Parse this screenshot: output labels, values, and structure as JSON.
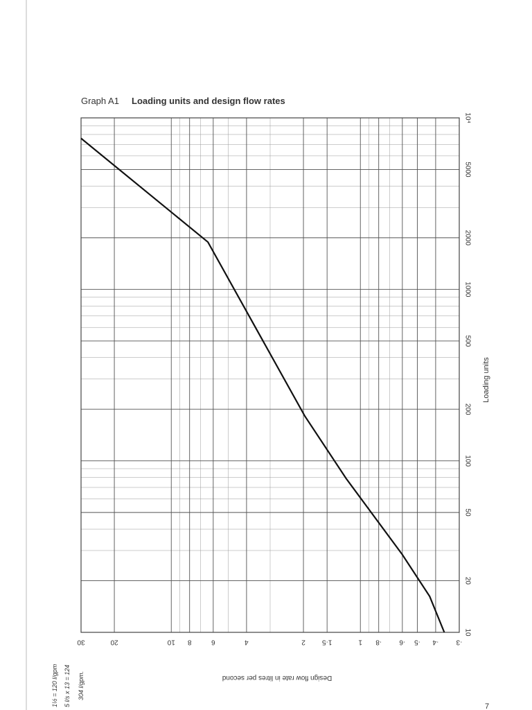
{
  "figure_label": "Graph A1",
  "page_number": "7",
  "handwritten_notes": [
    "1½ = 120 l/gpm",
    "5 l/s x 13 = 124",
    "304 l/gpm."
  ],
  "chart_data": {
    "type": "line",
    "title": "Loading units and design flow rates",
    "x_label": "Design flow rate in litres per second",
    "y_label": "Loading units",
    "x": [
      30,
      6.4,
      1.97,
      1.19,
      0.6,
      0.43,
      0.36
    ],
    "values": [
      7600,
      1885,
      183,
      79,
      28.4,
      16.2,
      10
    ],
    "color": "#111111",
    "xlog": true,
    "ylog": true,
    "grid": true,
    "xlim": [
      30,
      0.3
    ],
    "ylim": [
      10,
      10000
    ],
    "xticks": [
      30,
      20,
      10,
      8,
      6,
      4,
      2,
      {
        "value": 1.5,
        "label": "1·5"
      },
      1,
      {
        "value": 0.8,
        "label": "·8"
      },
      {
        "value": 0.6,
        "label": "·6"
      },
      {
        "value": 0.5,
        "label": "·5"
      },
      {
        "value": 0.4,
        "label": "·4"
      },
      {
        "value": 0.3,
        "label": "·3"
      }
    ],
    "yticks": [
      10,
      20,
      50,
      100,
      200,
      500,
      1000,
      2000,
      5000,
      {
        "value": 10000,
        "label": "10⁴"
      }
    ]
  }
}
